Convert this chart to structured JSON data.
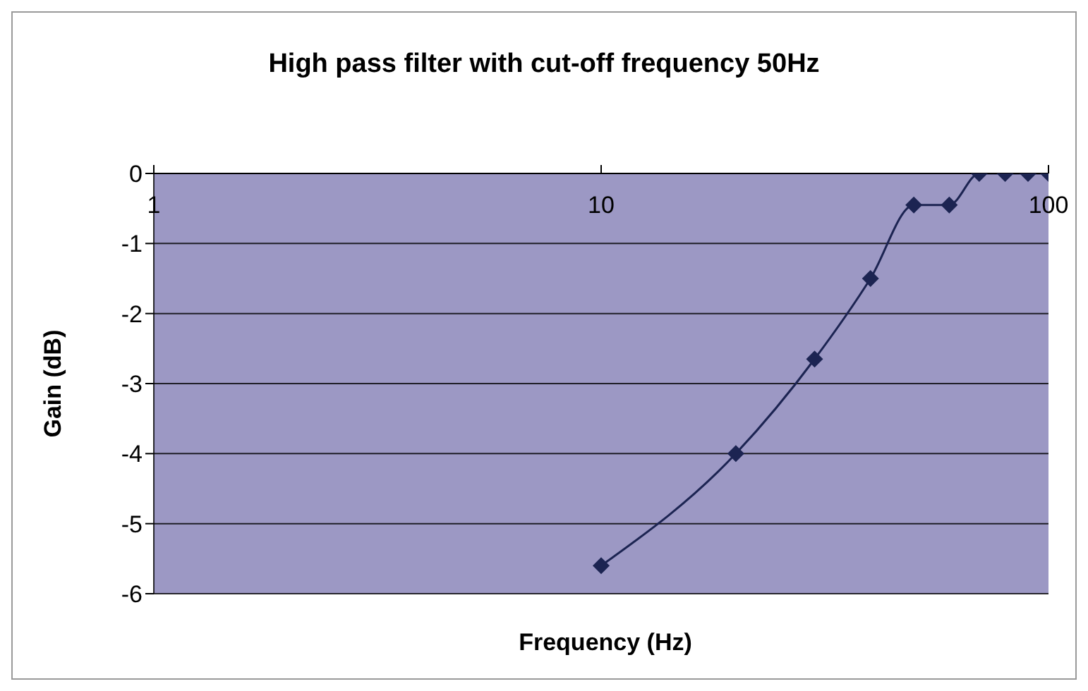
{
  "chart_data": {
    "type": "line",
    "title": "High pass  filter with cut-off frequency 50Hz",
    "xlabel": "Frequency (Hz)",
    "ylabel": "Gain (dB)",
    "x": [
      10,
      20,
      30,
      40,
      50,
      60,
      70,
      80,
      90,
      100
    ],
    "series": [
      {
        "color": "#1c2452",
        "values": [
          -5.6,
          -4,
          -2.65,
          -1.5,
          -0.45,
          -0.45,
          0,
          0,
          0,
          0
        ]
      }
    ],
    "xlim": [
      1,
      100
    ],
    "xticks": [
      1,
      10,
      100
    ],
    "ylim": [
      -6,
      0
    ],
    "yticks": [
      0,
      -1,
      -2,
      -3,
      -4,
      -5,
      -6
    ],
    "log": "x",
    "grid": "y",
    "marker": "diamond",
    "line_style": "solid"
  }
}
